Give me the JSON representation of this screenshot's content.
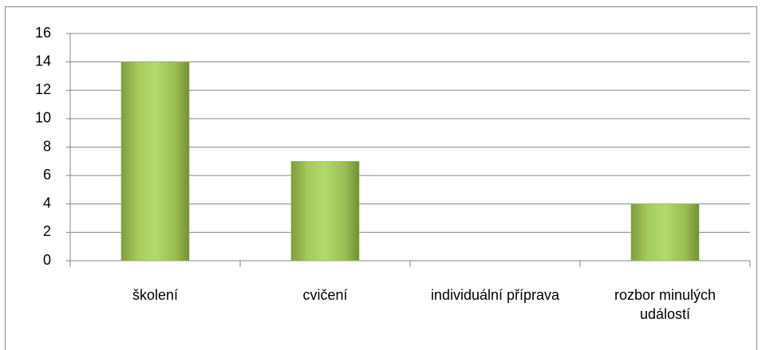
{
  "chart_data": {
    "type": "bar",
    "categories": [
      "školení",
      "cvičení",
      "individuální příprava",
      "rozbor minulých událostí"
    ],
    "values": [
      14,
      7,
      0,
      4
    ],
    "color": "#9bbb59",
    "ylim": [
      0,
      16
    ],
    "yticks": [
      0,
      2,
      4,
      6,
      8,
      10,
      12,
      14,
      16
    ],
    "grid": true
  }
}
